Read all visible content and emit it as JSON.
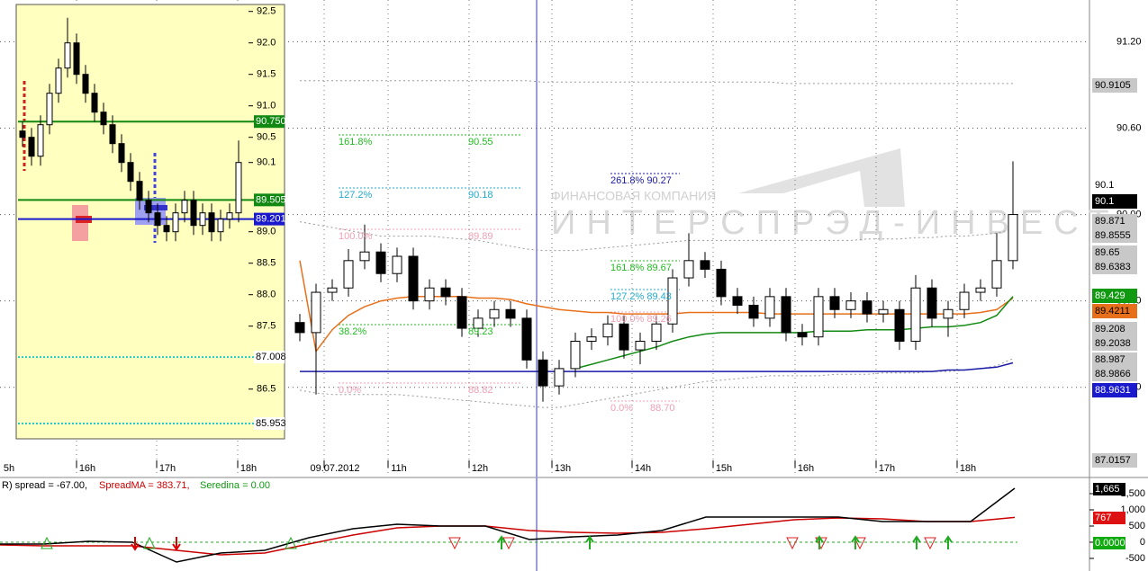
{
  "window": {
    "main": {
      "watermark": {
        "line1": "ФИНАНСОВАЯ КОМПАНИЯ",
        "line2": "ИНТЕРСПРЭД-ИНВЕСТ"
      },
      "ylim": [
        88.18,
        91.49
      ],
      "yticks": [
        {
          "value": 91.2,
          "label": "91.20"
        },
        {
          "value": 90.6,
          "label": "90.60"
        },
        {
          "value": 90,
          "label": "90.00"
        },
        {
          "value": 89.4,
          "label": "89.40"
        },
        {
          "value": 88.8,
          "label": "88.80"
        }
      ],
      "time_labels": [
        "5h",
        "16h",
        "17h",
        "18h",
        "09.07.2012",
        "11h",
        "12h",
        "13h",
        "14h",
        "15h",
        "16h",
        "17h",
        "18h"
      ],
      "candles": {
        "open": [
          89.25,
          89.18,
          89.46,
          89.49,
          89.68,
          89.74,
          89.59,
          89.71,
          89.4,
          89.49,
          89.43,
          89.21,
          89.28,
          89.34,
          89.28,
          88.99,
          88.81,
          88.93,
          89.12,
          89.15,
          89.24,
          89.06,
          89.12,
          89.24,
          89.56,
          89.68,
          89.62,
          89.43,
          89.37,
          89.28,
          89.43,
          89.18,
          89.15,
          89.43,
          89.34,
          89.4,
          89.31,
          89.34,
          89.12,
          89.49,
          89.28,
          89.34,
          89.46,
          89.49,
          89.68
        ],
        "high": [
          89.31,
          89.52,
          89.55,
          89.76,
          89.93,
          89.8,
          89.77,
          89.77,
          89.55,
          89.55,
          89.49,
          89.34,
          89.4,
          89.4,
          89.34,
          89.05,
          88.99,
          89.18,
          89.21,
          89.3,
          89.3,
          89.18,
          89.3,
          89.62,
          89.87,
          89.74,
          89.68,
          89.49,
          89.43,
          89.49,
          89.49,
          89.24,
          89.49,
          89.49,
          89.46,
          89.46,
          89.4,
          89.4,
          89.58,
          89.55,
          89.4,
          89.52,
          89.55,
          89.87,
          90.37
        ],
        "low": [
          89.12,
          88.75,
          89.4,
          89.43,
          89.62,
          89.53,
          89.53,
          89.34,
          89.34,
          89.37,
          89.15,
          89.15,
          89.22,
          89.22,
          88.93,
          88.7,
          88.75,
          88.87,
          89.06,
          89.09,
          89.0,
          88.96,
          89.06,
          89.18,
          89.5,
          89.56,
          89.37,
          89.31,
          89.22,
          89.22,
          89.12,
          89.09,
          89.09,
          89.28,
          89.28,
          89.25,
          89.25,
          89.06,
          89.06,
          89.22,
          89.15,
          89.28,
          89.4,
          89.43,
          89.62
        ],
        "close": [
          89.18,
          89.46,
          89.49,
          89.68,
          89.74,
          89.59,
          89.71,
          89.4,
          89.49,
          89.43,
          89.21,
          89.28,
          89.34,
          89.28,
          88.99,
          88.81,
          88.93,
          89.12,
          89.15,
          89.24,
          89.06,
          89.12,
          89.24,
          89.56,
          89.68,
          89.62,
          89.43,
          89.37,
          89.28,
          89.43,
          89.18,
          89.15,
          89.43,
          89.34,
          89.4,
          89.31,
          89.34,
          89.12,
          89.49,
          89.28,
          89.34,
          89.46,
          89.49,
          89.68,
          90.0
        ]
      },
      "lines": [
        {
          "color": "#999999",
          "dashed": true,
          "values": [
            90.93,
            90.93,
            90.93,
            90.93,
            90.93,
            90.93,
            90.93,
            90.93,
            90.93,
            90.93,
            90.93,
            90.93,
            90.93,
            90.93,
            90.93,
            90.92,
            90.92,
            90.92,
            90.92,
            90.92,
            90.92,
            90.92,
            90.92,
            90.92,
            90.92,
            90.92,
            90.92,
            90.92,
            90.92,
            90.92,
            90.91,
            90.91,
            90.91,
            90.91,
            90.91,
            90.91,
            90.91,
            90.91,
            90.91,
            90.91,
            90.91,
            90.91,
            90.91,
            90.91,
            90.91
          ]
        },
        {
          "color": "#999999",
          "dashed": true,
          "values": [
            89.95,
            89.93,
            89.91,
            89.89,
            89.87,
            89.85,
            89.85,
            89.85,
            89.85,
            89.84,
            89.83,
            89.82,
            89.8,
            89.78,
            89.76,
            89.75,
            89.75,
            89.75,
            89.76,
            89.77,
            89.78,
            89.79,
            89.8,
            89.81,
            89.82,
            89.82,
            89.82,
            89.82,
            89.82,
            89.82,
            89.82,
            89.82,
            89.82,
            89.82,
            89.82,
            89.83,
            89.83,
            89.83,
            89.84,
            89.84,
            89.85,
            89.85,
            89.86,
            89.87,
            89.9
          ]
        },
        {
          "color": "#999999",
          "dashed": true,
          "values": [
            88.78,
            88.76,
            88.75,
            88.75,
            88.75,
            88.75,
            88.75,
            88.74,
            88.73,
            88.72,
            88.71,
            88.7,
            88.69,
            88.68,
            88.67,
            88.66,
            88.66,
            88.68,
            88.7,
            88.72,
            88.74,
            88.76,
            88.78,
            88.8,
            88.82,
            88.84,
            88.85,
            88.86,
            88.87,
            88.88,
            88.88,
            88.88,
            88.88,
            88.89,
            88.89,
            88.89,
            88.9,
            88.9,
            88.9,
            88.91,
            88.91,
            88.92,
            88.93,
            88.95,
            89.0
          ]
        },
        {
          "color": "#1a1aa6",
          "dashed": false,
          "values": [
            88.91,
            88.91,
            88.91,
            88.91,
            88.91,
            88.91,
            88.91,
            88.91,
            88.91,
            88.91,
            88.91,
            88.91,
            88.91,
            88.91,
            88.91,
            88.91,
            88.91,
            88.91,
            88.91,
            88.91,
            88.91,
            88.91,
            88.91,
            88.91,
            88.91,
            88.91,
            88.91,
            88.91,
            88.91,
            88.91,
            88.91,
            88.91,
            88.91,
            88.91,
            88.91,
            88.91,
            88.91,
            88.91,
            88.91,
            88.91,
            88.92,
            88.92,
            88.93,
            88.94,
            88.97
          ]
        },
        {
          "color": "#e8701a",
          "dashed": false,
          "values": [
            89.68,
            89.05,
            89.2,
            89.3,
            89.36,
            89.4,
            89.42,
            89.43,
            89.43,
            89.43,
            89.43,
            89.42,
            89.42,
            89.41,
            89.38,
            89.36,
            89.34,
            89.33,
            89.32,
            89.32,
            89.31,
            89.31,
            89.31,
            89.31,
            89.32,
            89.32,
            89.32,
            89.32,
            89.32,
            89.31,
            89.31,
            89.31,
            89.31,
            89.31,
            89.31,
            89.31,
            89.31,
            89.31,
            89.31,
            89.31,
            89.31,
            89.31,
            89.32,
            89.34,
            89.42
          ]
        },
        {
          "color": "#138a13",
          "dashed": false,
          "values": [
            null,
            null,
            null,
            null,
            null,
            null,
            null,
            null,
            null,
            null,
            null,
            null,
            null,
            null,
            null,
            null,
            null,
            88.93,
            88.96,
            88.99,
            89.02,
            89.05,
            89.08,
            89.12,
            89.15,
            89.17,
            89.18,
            89.18,
            89.18,
            89.18,
            89.18,
            89.18,
            89.19,
            89.19,
            89.19,
            89.2,
            89.2,
            89.2,
            89.21,
            89.22,
            89.22,
            89.23,
            89.25,
            89.3,
            89.43
          ]
        }
      ],
      "fib_labels": [
        {
          "text": "161.8%",
          "color": "#22bb22"
        },
        {
          "text": "90.55",
          "color": "#22bb22"
        },
        {
          "text": "127.2%",
          "color": "#22aacc"
        },
        {
          "text": "90.18",
          "color": "#22aacc"
        },
        {
          "text": "100.0%",
          "color": "#f0a0b4"
        },
        {
          "text": "89.89",
          "color": "#f0a0b4"
        },
        {
          "text": "38.2%",
          "color": "#22bb22"
        },
        {
          "text": "89.23",
          "color": "#22bb22"
        },
        {
          "text": "0.0%",
          "color": "#f0a0b4"
        },
        {
          "text": "88.82",
          "color": "#f0a0b4"
        },
        {
          "text": "261.8% 90.27",
          "color": "#1a1aa6"
        },
        {
          "text": "161.8% 89.67",
          "color": "#22bb22"
        },
        {
          "text": "127.2% 89.43",
          "color": "#22aacc"
        },
        {
          "text": "100.0% 89.26",
          "color": "#f0a0b4"
        },
        {
          "text": "0.0%",
          "color": "#f0a0b4"
        },
        {
          "text": "88.70",
          "color": "#f0a0b4"
        }
      ],
      "price_boxes": [
        {
          "text": "90.9105",
          "bg": "#c8c8c8",
          "fg": "#000000"
        },
        {
          "text": "90.1",
          "bg": "#ffffff",
          "fg": "#000000"
        },
        {
          "text": "90.1",
          "bg": "#000000",
          "fg": "#ffffff"
        },
        {
          "text": "89.871",
          "bg": "#c8c8c8",
          "fg": "#000000"
        },
        {
          "text": "89.8555",
          "bg": "#c8c8c8",
          "fg": "#000000"
        },
        {
          "text": "89.65",
          "bg": "#c8c8c8",
          "fg": "#000000"
        },
        {
          "text": "89.6383",
          "bg": "#c8c8c8",
          "fg": "#000000"
        },
        {
          "text": "89.429",
          "bg": "#119911",
          "fg": "#ffffff"
        },
        {
          "text": "89.4211",
          "bg": "#e8701a",
          "fg": "#000000"
        },
        {
          "text": "89.208",
          "bg": "#c8c8c8",
          "fg": "#000000"
        },
        {
          "text": "89.2038",
          "bg": "#c8c8c8",
          "fg": "#000000"
        },
        {
          "text": "88.987",
          "bg": "#c8c8c8",
          "fg": "#000000"
        },
        {
          "text": "88.9866",
          "bg": "#c8c8c8",
          "fg": "#000000"
        },
        {
          "text": "88.9631",
          "bg": "#1a1acc",
          "fg": "#ffffff"
        },
        {
          "text": "87.0157",
          "bg": "#c8c8c8",
          "fg": "#000000"
        }
      ]
    },
    "inset": {
      "ylim": [
        85.71,
        92.61
      ],
      "yticks": [
        92.5,
        {
          "value": 92,
          "label": "92.0"
        },
        91.5,
        {
          "value": 91,
          "label": "91.0"
        },
        90.5,
        90.1,
        {
          "value": 89,
          "label": "89.0"
        },
        88.5,
        {
          "value": 88,
          "label": "88.0"
        },
        87.5,
        86.5
      ],
      "candles": {
        "open": [
          90.6,
          90.5,
          90.2,
          90.7,
          91.2,
          91.6,
          92.0,
          91.5,
          91.2,
          90.9,
          90.7,
          90.4,
          90.1,
          89.8,
          89.5,
          89.3,
          89.1,
          89.0,
          89.3,
          89.5,
          89.1,
          89.3,
          89.0,
          89.2,
          89.3
        ],
        "high": [
          90.75,
          90.65,
          90.85,
          91.35,
          91.75,
          92.4,
          92.15,
          91.65,
          91.35,
          91.05,
          90.85,
          90.55,
          90.25,
          89.95,
          89.65,
          89.45,
          89.25,
          89.45,
          89.65,
          89.65,
          89.45,
          89.45,
          89.35,
          89.45,
          90.45
        ],
        "low": [
          90.35,
          90.05,
          90.05,
          90.55,
          91.05,
          91.45,
          91.35,
          91.05,
          90.75,
          90.55,
          90.25,
          89.95,
          89.65,
          89.35,
          89.15,
          88.95,
          88.85,
          88.85,
          89.15,
          88.95,
          88.95,
          88.85,
          88.85,
          89.05,
          89.15
        ],
        "close": [
          90.5,
          90.2,
          90.7,
          91.2,
          91.6,
          92.0,
          91.5,
          91.2,
          90.9,
          90.7,
          90.4,
          90.1,
          89.8,
          89.5,
          89.3,
          89.1,
          89.0,
          89.3,
          89.5,
          89.1,
          89.3,
          89.0,
          89.2,
          89.3,
          90.1
        ]
      },
      "levels": [
        {
          "value": 90.75,
          "label": "90.750",
          "color": "#118811",
          "fg": "#ffffff",
          "dashed": false
        },
        {
          "value": 89.505,
          "label": "89.505",
          "color": "#118811",
          "fg": "#ffffff",
          "dashed": false
        },
        {
          "value": 89.201,
          "label": "89.201",
          "color": "#1a1acc",
          "fg": "#ffffff",
          "dashed": false
        },
        {
          "value": 87.008,
          "label": "87.008",
          "color": "#22cccc",
          "fg": "#000000",
          "dashed": true
        },
        {
          "value": 85.953,
          "label": "85.953",
          "color": "#22cccc",
          "fg": "#000000",
          "dashed": true
        }
      ]
    },
    "indicator": {
      "legend": [
        {
          "text": "R) spread = -67.00,",
          "color": "#000000"
        },
        {
          "text": "SpreadMA = 383.71,",
          "color": "#cc0000"
        },
        {
          "text": "Seredina = 0.00",
          "color": "#119911"
        }
      ],
      "ylim": [
        -889,
        1944
      ],
      "yticks": [
        {
          "value": 1500,
          "label": "1,500"
        },
        {
          "value": 1000,
          "label": "1,000"
        },
        500,
        0,
        -500
      ],
      "spread": {
        "color": "#000000",
        "values": [
          -56,
          -56,
          28,
          0,
          -611,
          -333,
          -250,
          139,
          417,
          556,
          500,
          500,
          83,
          167,
          222,
          361,
          778,
          778,
          778,
          778,
          639,
          639,
          639,
          1665
        ]
      },
      "spread_ma": {
        "color": "#cc0000",
        "values": [
          -83,
          -111,
          -111,
          -111,
          -250,
          -389,
          -333,
          -56,
          222,
          444,
          500,
          500,
          361,
          306,
          278,
          306,
          417,
          556,
          694,
          750,
          722,
          639,
          639,
          767
        ]
      },
      "seredina": {
        "color": "#22aa22",
        "value": 0
      },
      "boxes": [
        {
          "text": "1,665",
          "bg": "#000000",
          "fg": "#ffffff"
        },
        {
          "text": "767",
          "bg": "#dd1111",
          "fg": "#ffffff"
        },
        {
          "text": "0.00000",
          "bg": "#11aa11",
          "fg": "#ffffff"
        }
      ]
    }
  }
}
